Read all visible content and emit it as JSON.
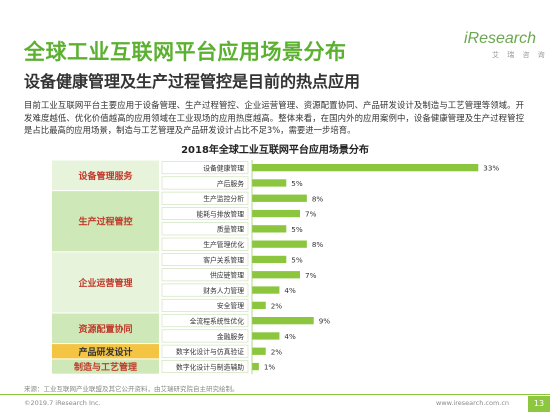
{
  "header": {
    "title": "全球工业互联网平台应用场景分布",
    "subtitle": "设备健康管理及生产过程管控是目前的热点应用"
  },
  "logo": {
    "word": "iResearch",
    "sub": "艾 瑞 咨 询"
  },
  "description": "目前工业互联网平台主要应用于设备管理、生产过程管控、企业运营管理、资源配置协同、产品研发设计及制造与工艺管理等领域。开发难度越低、优化价值越高的应用领域在工业现场的应用热度越高。整体来看，在国内外的应用案例中，设备健康管理及生产过程管控是占比最高的应用场景，制造与工艺管理及产品研发设计占比不足3%，需要进一步培育。",
  "chart_data": {
    "type": "bar",
    "orientation": "horizontal",
    "title": "2018年全球工业互联网平台应用场景分布",
    "unit": "%",
    "categories": [
      "设备健康管理",
      "产后服务",
      "生产监控分析",
      "能耗与排放管理",
      "质量管理",
      "生产管理优化",
      "客户关系管理",
      "供应链管理",
      "财务人力管理",
      "安全管理",
      "全流程系统性优化",
      "金融服务",
      "数字化设计与仿真验证",
      "数字化设计与制造辅助"
    ],
    "values": [
      33,
      5,
      8,
      7,
      5,
      8,
      5,
      7,
      4,
      2,
      9,
      4,
      2,
      1
    ],
    "value_labels": [
      "33%",
      "5%",
      "8%",
      "7%",
      "5%",
      "8%",
      "5%",
      "7%",
      "4%",
      "2%",
      "9%",
      "4%",
      "2%",
      "1%"
    ],
    "xlim": [
      0,
      35
    ],
    "groups": [
      {
        "label": "设备管理服务",
        "indices": [
          0,
          1
        ]
      },
      {
        "label": "生产过程管控",
        "indices": [
          2,
          3,
          4,
          5
        ]
      },
      {
        "label": "企业运营管理",
        "indices": [
          6,
          7,
          8,
          9
        ]
      },
      {
        "label": "资源配置协同",
        "indices": [
          10,
          11
        ]
      },
      {
        "label": "产品研发设计",
        "indices": [
          12
        ]
      },
      {
        "label": "制造与工艺管理",
        "indices": [
          13
        ]
      }
    ],
    "group_colors": [
      "#e8f3dc",
      "#cfe8b8",
      "#e8f3dc",
      "#cfe8b8",
      "#f4c542",
      "#cfe8b8"
    ],
    "label_colors": [
      "#c0392b",
      "#c0392b",
      "#c0392b",
      "#c0392b",
      "#333333",
      "#c0392b"
    ],
    "bar_color": "#8cc63f",
    "colors": {
      "accent": "#5bb030",
      "footer": "#8dc63f"
    }
  },
  "source": "来源：工业互联网产业联盟及其它公开资料，由艾瑞研究院自主研究绘制。",
  "footer": {
    "copyright": "©2019.7 iResearch Inc.",
    "website": "www.iresearch.com.cn",
    "page": "13"
  }
}
